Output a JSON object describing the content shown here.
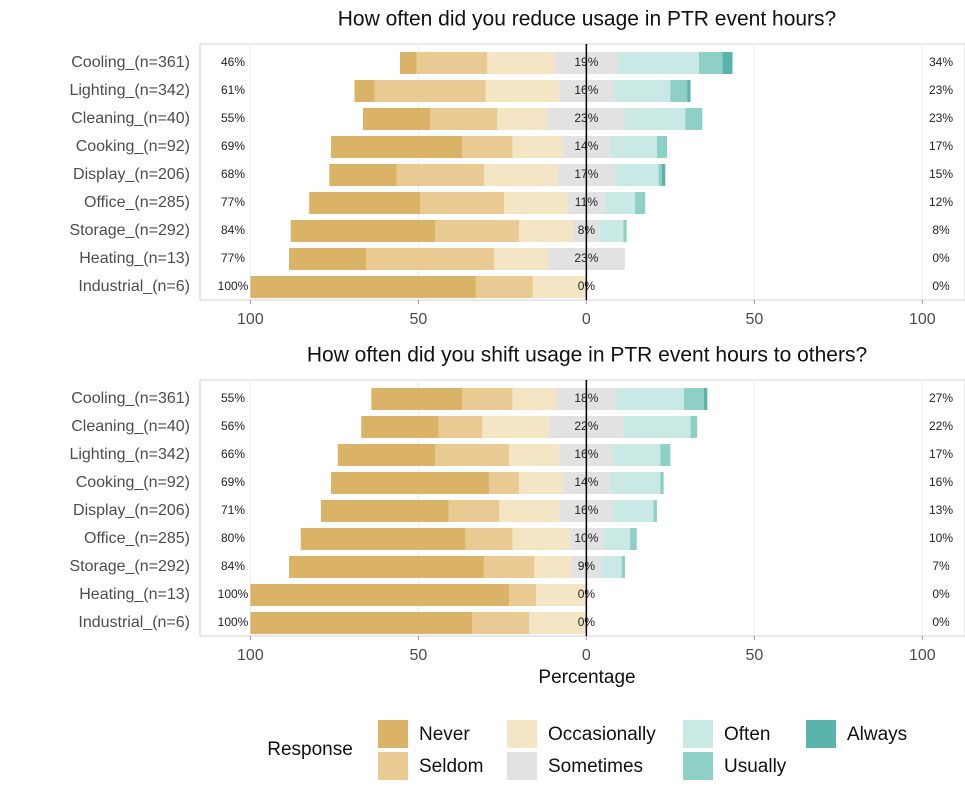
{
  "chart_data": [
    {
      "type": "diverging-bar",
      "title": "How often did you reduce usage in PTR event hours?",
      "categories": [
        "Cooling_(n=361)",
        "Lighting_(n=342)",
        "Cleaning_(n=40)",
        "Cooking_(n=92)",
        "Display_(n=206)",
        "Office_(n=285)",
        "Storage_(n=292)",
        "Heating_(n=13)",
        "Industrial_(n=6)"
      ],
      "series": [
        {
          "name": "Never",
          "color": "#dbb366",
          "values": [
            5,
            6,
            20,
            39,
            20,
            33,
            43,
            23,
            67
          ]
        },
        {
          "name": "Seldom",
          "color": "#e8ca92",
          "values": [
            21,
            33,
            20,
            15,
            26,
            25,
            25,
            38,
            17
          ]
        },
        {
          "name": "Occasionally",
          "color": "#f4e5c5",
          "values": [
            20,
            22,
            15,
            15,
            22,
            19,
            16,
            16,
            16
          ]
        },
        {
          "name": "Sometimes",
          "color": "#e2e2e2",
          "values": [
            19,
            16,
            23,
            14,
            17,
            11,
            8,
            23,
            0
          ]
        },
        {
          "name": "Often",
          "color": "#c9e9e4",
          "values": [
            24,
            17,
            18,
            14,
            13,
            9,
            7,
            0,
            0
          ]
        },
        {
          "name": "Usually",
          "color": "#8fd0c6",
          "values": [
            7,
            5,
            5,
            3,
            1,
            3,
            1,
            0,
            0
          ]
        },
        {
          "name": "Always",
          "color": "#5ab4ac",
          "values": [
            3,
            1,
            0,
            0,
            1,
            0,
            0,
            0,
            0
          ]
        }
      ],
      "summary": {
        "low": {
          "values": [
            46,
            61,
            55,
            69,
            68,
            77,
            84,
            77,
            100
          ],
          "value_labels": [
            "46%",
            "61%",
            "55%",
            "69%",
            "68%",
            "77%",
            "84%",
            "77%",
            "100%"
          ]
        },
        "neutral": {
          "values": [
            19,
            16,
            23,
            14,
            17,
            11,
            8,
            23,
            0
          ],
          "value_labels": [
            "19%",
            "16%",
            "23%",
            "14%",
            "17%",
            "11%",
            "8%",
            "23%",
            "0%"
          ]
        },
        "high": {
          "values": [
            34,
            23,
            23,
            17,
            15,
            12,
            8,
            0,
            0
          ],
          "value_labels": [
            "34%",
            "23%",
            "23%",
            "17%",
            "15%",
            "12%",
            "8%",
            "0%",
            "0%"
          ]
        }
      },
      "xlim": [
        -115,
        112.7
      ],
      "xticks": [
        {
          "value": -100,
          "label": "100"
        },
        {
          "value": -50,
          "label": "50"
        },
        0,
        50,
        100
      ]
    },
    {
      "type": "diverging-bar",
      "title": "How often did you shift usage in PTR event hours to others?",
      "x_label": "Percentage",
      "categories": [
        "Cooling_(n=361)",
        "Cleaning_(n=40)",
        "Lighting_(n=342)",
        "Cooking_(n=92)",
        "Display_(n=206)",
        "Office_(n=285)",
        "Storage_(n=292)",
        "Heating_(n=13)",
        "Industrial_(n=6)"
      ],
      "series": [
        {
          "name": "Never",
          "color": "#dbb366",
          "values": [
            27,
            23,
            29,
            47,
            38,
            49,
            58,
            77,
            66
          ]
        },
        {
          "name": "Seldom",
          "color": "#e8ca92",
          "values": [
            15,
            13,
            22,
            9,
            15,
            14,
            15,
            8,
            17
          ]
        },
        {
          "name": "Occasionally",
          "color": "#f4e5c5",
          "values": [
            13,
            20,
            15,
            13,
            18,
            17,
            11,
            15,
            17
          ]
        },
        {
          "name": "Sometimes",
          "color": "#e2e2e2",
          "values": [
            18,
            22,
            16,
            14,
            16,
            10,
            9,
            0,
            0
          ]
        },
        {
          "name": "Often",
          "color": "#c9e9e4",
          "values": [
            20,
            20,
            14,
            15,
            12,
            8,
            6,
            0,
            0
          ]
        },
        {
          "name": "Usually",
          "color": "#8fd0c6",
          "values": [
            6,
            2,
            3,
            1,
            1,
            2,
            1,
            0,
            0
          ]
        },
        {
          "name": "Always",
          "color": "#5ab4ac",
          "values": [
            1,
            0,
            0,
            0,
            0,
            0,
            0,
            0,
            0
          ]
        }
      ],
      "summary": {
        "low": {
          "values": [
            55,
            56,
            66,
            69,
            71,
            80,
            84,
            100,
            100
          ],
          "value_labels": [
            "55%",
            "56%",
            "66%",
            "69%",
            "71%",
            "80%",
            "84%",
            "100%",
            "100%"
          ]
        },
        "neutral": {
          "values": [
            18,
            22,
            16,
            14,
            16,
            10,
            9,
            0,
            0
          ],
          "value_labels": [
            "18%",
            "22%",
            "16%",
            "14%",
            "16%",
            "10%",
            "9%",
            "0%",
            "0%"
          ]
        },
        "high": {
          "values": [
            27,
            22,
            17,
            16,
            13,
            10,
            7,
            0,
            0
          ],
          "value_labels": [
            "27%",
            "22%",
            "17%",
            "16%",
            "13%",
            "10%",
            "7%",
            "0%",
            "0%"
          ]
        }
      },
      "xlim": [
        -115,
        112.7
      ],
      "xticks": [
        {
          "value": -100,
          "label": "100"
        },
        {
          "value": -50,
          "label": "50"
        },
        0,
        50,
        100
      ]
    }
  ],
  "legend": {
    "title": "Response"
  }
}
